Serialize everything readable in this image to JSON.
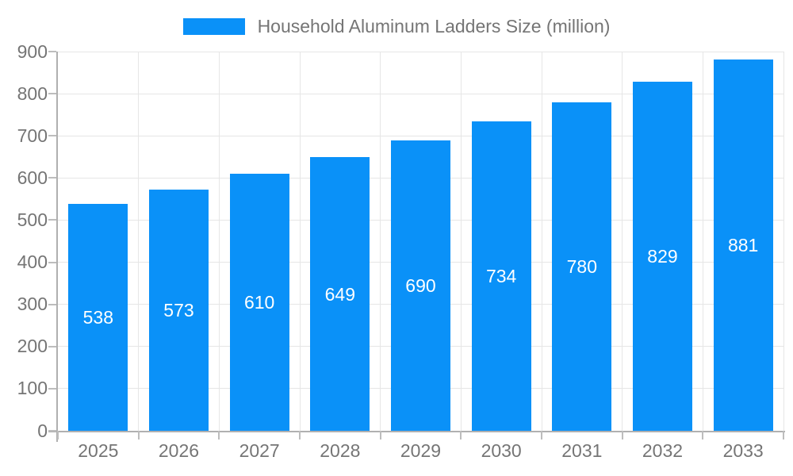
{
  "legend": {
    "label": "Household Aluminum Ladders Size (million)"
  },
  "colors": {
    "bar": "#0a91f8",
    "axis": "#b0b0b0",
    "tick": "#bdbdbd",
    "grid": "#e6e6e6",
    "text": "#757575",
    "bar_label": "#ffffff",
    "background": "#ffffff"
  },
  "chart_data": {
    "type": "bar",
    "title": "Household Aluminum Ladders Size (million)",
    "categories": [
      "2025",
      "2026",
      "2027",
      "2028",
      "2029",
      "2030",
      "2031",
      "2032",
      "2033"
    ],
    "values": [
      538,
      573,
      610,
      649,
      690,
      734,
      780,
      829,
      881
    ],
    "series": [
      {
        "name": "Household Aluminum Ladders Size (million)",
        "values": [
          538,
          573,
          610,
          649,
          690,
          734,
          780,
          829,
          881
        ]
      }
    ],
    "xlabel": "",
    "ylabel": "",
    "ylim": [
      0,
      900
    ],
    "ytick_step": 100,
    "grid": true,
    "legend_position": "top",
    "bar_labels": "inside-middle"
  }
}
